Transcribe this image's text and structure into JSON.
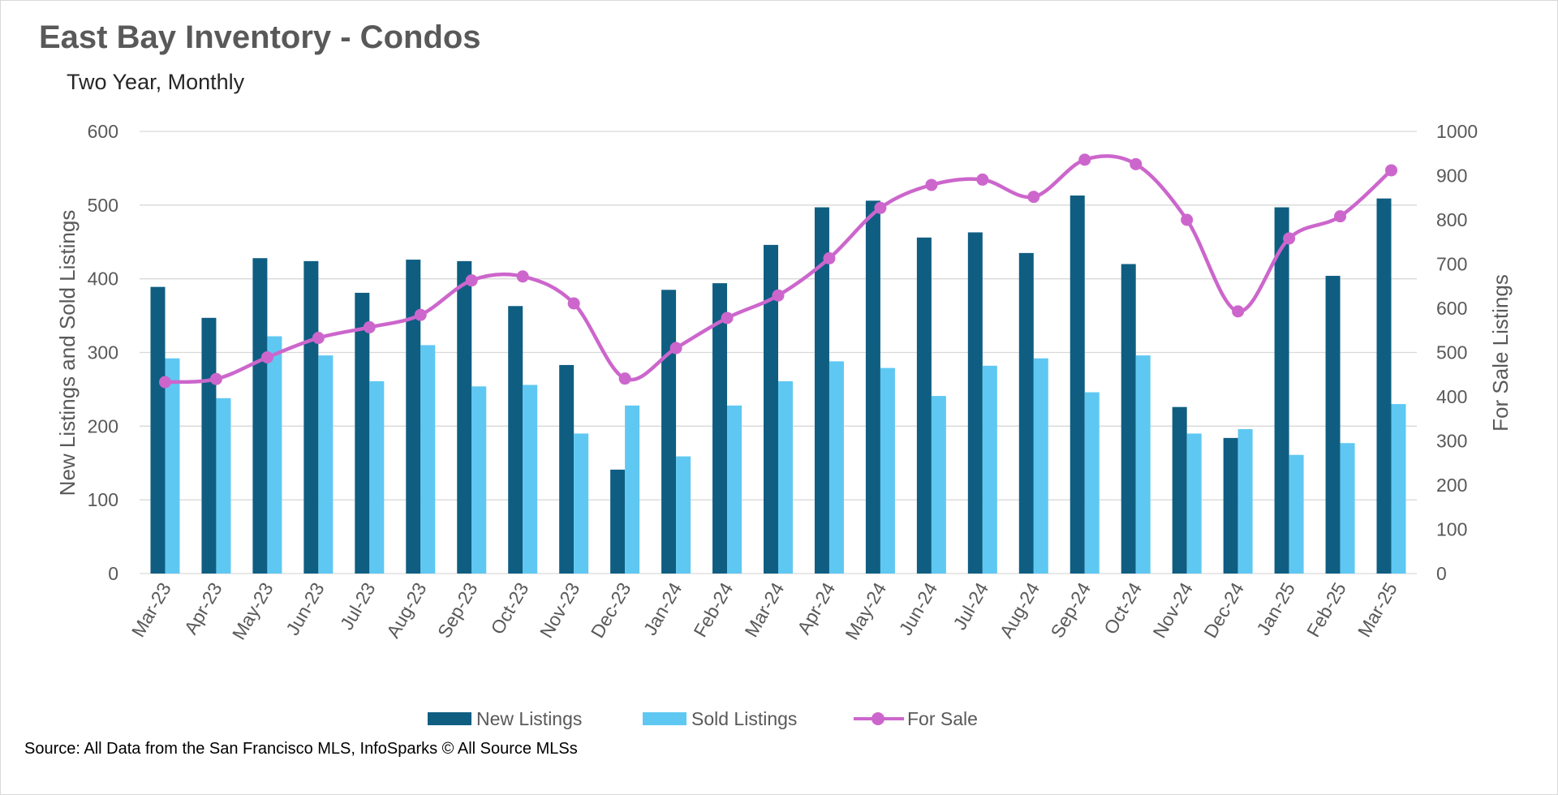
{
  "colors": {
    "new_listings": "#0f5e82",
    "sold_listings": "#5fc8f2",
    "for_sale": "#cc66cc",
    "grid": "#d9d9d9"
  },
  "footer": {
    "source": "Source: All Data from the San Francisco MLS, InfoSparks © All Source MLSs"
  },
  "chart_data": {
    "type": "bar",
    "title": "East Bay Inventory - Condos",
    "subtitle": "Two Year, Monthly",
    "categories": [
      "Mar-23",
      "Apr-23",
      "May-23",
      "Jun-23",
      "Jul-23",
      "Aug-23",
      "Sep-23",
      "Oct-23",
      "Nov-23",
      "Dec-23",
      "Jan-24",
      "Feb-24",
      "Mar-24",
      "Apr-24",
      "May-24",
      "Jun-24",
      "Jul-24",
      "Aug-24",
      "Sep-24",
      "Oct-24",
      "Nov-24",
      "Dec-24",
      "Jan-25",
      "Feb-25",
      "Mar-25"
    ],
    "series": [
      {
        "name": "New Listings",
        "type": "bar",
        "axis": "left",
        "values": [
          389,
          347,
          428,
          424,
          381,
          426,
          424,
          363,
          283,
          141,
          385,
          394,
          446,
          497,
          506,
          456,
          463,
          435,
          513,
          420,
          226,
          184,
          497,
          404,
          509
        ]
      },
      {
        "name": "Sold Listings",
        "type": "bar",
        "axis": "left",
        "values": [
          292,
          238,
          322,
          296,
          261,
          310,
          254,
          256,
          190,
          228,
          159,
          228,
          261,
          288,
          279,
          241,
          282,
          292,
          246,
          296,
          190,
          196,
          161,
          177,
          230
        ]
      },
      {
        "name": "For Sale",
        "type": "line",
        "axis": "right",
        "values": [
          433,
          440,
          489,
          533,
          557,
          585,
          663,
          672,
          611,
          441,
          510,
          578,
          629,
          713,
          827,
          879,
          891,
          852,
          936,
          926,
          800,
          593,
          758,
          808,
          912
        ]
      }
    ],
    "ylabel": "New Listings and Sold Listings",
    "y2label": "For Sale Listings",
    "ylim": [
      0,
      600
    ],
    "y2lim": [
      0,
      1000
    ],
    "yticks": [
      "0",
      "100",
      "200",
      "300",
      "400",
      "500",
      "600"
    ],
    "y2ticks": [
      "0",
      "100",
      "200",
      "300",
      "400",
      "500",
      "600",
      "700",
      "800",
      "900",
      "1000"
    ],
    "grid": true,
    "legend_position": "bottom"
  }
}
